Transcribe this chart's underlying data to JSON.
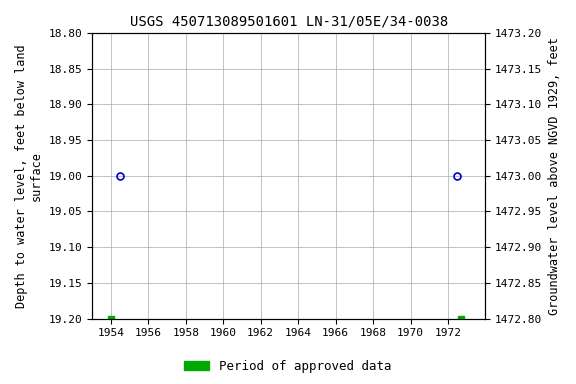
{
  "title": "USGS 450713089501601 LN-31/05E/34-0038",
  "ylabel_left": "Depth to water level, feet below land\nsurface",
  "ylabel_right": "Groundwater level above NGVD 1929, feet",
  "xlim": [
    1953.0,
    1974.0
  ],
  "ylim_left_top": 18.8,
  "ylim_left_bottom": 19.2,
  "ylim_right_top": 1473.2,
  "ylim_right_bottom": 1472.8,
  "xticks": [
    1954,
    1956,
    1958,
    1960,
    1962,
    1964,
    1966,
    1968,
    1970,
    1972
  ],
  "yticks_left": [
    18.8,
    18.85,
    18.9,
    18.95,
    19.0,
    19.05,
    19.1,
    19.15,
    19.2
  ],
  "yticks_right": [
    1473.2,
    1473.15,
    1473.1,
    1473.05,
    1473.0,
    1472.95,
    1472.9,
    1472.85,
    1472.8
  ],
  "circle_points_x": [
    1954.5,
    1972.5
  ],
  "circle_points_y": [
    19.0,
    19.0
  ],
  "square_points_x": [
    1954.0,
    1972.7
  ],
  "square_points_y": [
    19.2,
    19.2
  ],
  "circle_color": "#0000cc",
  "square_color": "#00aa00",
  "bg_color": "#ffffff",
  "grid_color": "#aaaaaa",
  "title_fontsize": 10,
  "axis_label_fontsize": 8.5,
  "tick_fontsize": 8,
  "legend_label": "Period of approved data",
  "legend_color": "#00aa00",
  "font_family": "monospace"
}
